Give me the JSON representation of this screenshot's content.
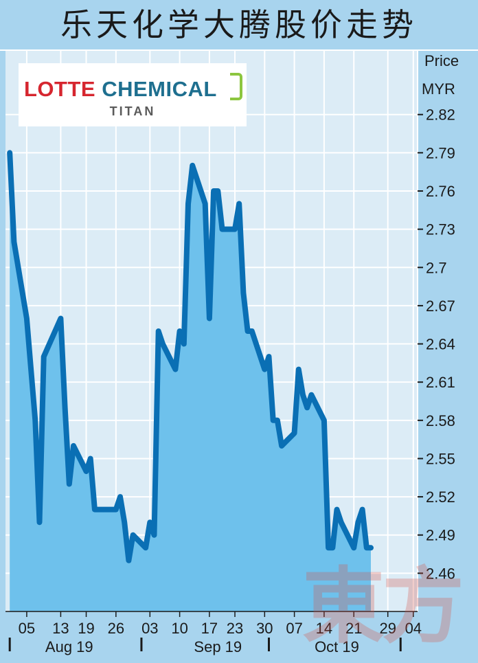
{
  "title": "乐天化学大腾股价走势",
  "logo": {
    "brand_red": "LOTTE",
    "brand_teal": "CHEMICAL",
    "sub": "TITAN"
  },
  "watermark": "東方",
  "colors": {
    "background": "#a8d4ee",
    "plot_bg": "#dcecf6",
    "line": "#0a6fb4",
    "fill": "#6ec1ec",
    "grid": "#ffffff"
  },
  "chart_data": {
    "type": "area",
    "ylabel": "Price",
    "yunit": "MYR",
    "ylim": [
      2.43,
      2.87
    ],
    "yticks": [
      2.46,
      2.49,
      2.52,
      2.55,
      2.58,
      2.61,
      2.64,
      2.67,
      2.7,
      2.73,
      2.76,
      2.79,
      2.82
    ],
    "ytick_labels": [
      "2.46",
      "2.49",
      "2.52",
      "2.55",
      "2.58",
      "2.61",
      "2.64",
      "2.67",
      "2.7",
      "2.73",
      "2.76",
      "2.79",
      "2.82"
    ],
    "xlim": [
      "2019-07-31",
      "2019-11-05"
    ],
    "xticks": [
      {
        "date": "2019-08-05",
        "label": "05"
      },
      {
        "date": "2019-08-13",
        "label": "13"
      },
      {
        "date": "2019-08-19",
        "label": "19"
      },
      {
        "date": "2019-08-26",
        "label": "26"
      },
      {
        "date": "2019-09-03",
        "label": "03"
      },
      {
        "date": "2019-09-10",
        "label": "10"
      },
      {
        "date": "2019-09-17",
        "label": "17"
      },
      {
        "date": "2019-09-23",
        "label": "23"
      },
      {
        "date": "2019-09-30",
        "label": "30"
      },
      {
        "date": "2019-10-07",
        "label": "07"
      },
      {
        "date": "2019-10-14",
        "label": "14"
      },
      {
        "date": "2019-10-21",
        "label": "21"
      },
      {
        "date": "2019-10-29",
        "label": "29"
      },
      {
        "date": "2019-11-04",
        "label": "04"
      }
    ],
    "month_labels": [
      {
        "date": "2019-08-15",
        "label": "Aug 19"
      },
      {
        "date": "2019-09-19",
        "label": "Sep 19"
      },
      {
        "date": "2019-10-17",
        "label": "Oct 19"
      }
    ],
    "month_separators": [
      "2019-08-01",
      "2019-09-01",
      "2019-10-01",
      "2019-11-01"
    ],
    "grid": true,
    "series": [
      {
        "points": [
          [
            "2019-08-01",
            2.79
          ],
          [
            "2019-08-02",
            2.72
          ],
          [
            "2019-08-05",
            2.66
          ],
          [
            "2019-08-06",
            2.62
          ],
          [
            "2019-08-07",
            2.58
          ],
          [
            "2019-08-08",
            2.5
          ],
          [
            "2019-08-09",
            2.63
          ],
          [
            "2019-08-13",
            2.66
          ],
          [
            "2019-08-14",
            2.59
          ],
          [
            "2019-08-15",
            2.53
          ],
          [
            "2019-08-16",
            2.56
          ],
          [
            "2019-08-19",
            2.54
          ],
          [
            "2019-08-20",
            2.55
          ],
          [
            "2019-08-21",
            2.51
          ],
          [
            "2019-08-22",
            2.51
          ],
          [
            "2019-08-23",
            2.51
          ],
          [
            "2019-08-26",
            2.51
          ],
          [
            "2019-08-27",
            2.52
          ],
          [
            "2019-08-28",
            2.5
          ],
          [
            "2019-08-29",
            2.47
          ],
          [
            "2019-08-30",
            2.49
          ],
          [
            "2019-09-02",
            2.48
          ],
          [
            "2019-09-03",
            2.5
          ],
          [
            "2019-09-04",
            2.49
          ],
          [
            "2019-09-05",
            2.65
          ],
          [
            "2019-09-06",
            2.64
          ],
          [
            "2019-09-09",
            2.62
          ],
          [
            "2019-09-10",
            2.65
          ],
          [
            "2019-09-11",
            2.64
          ],
          [
            "2019-09-12",
            2.75
          ],
          [
            "2019-09-13",
            2.78
          ],
          [
            "2019-09-16",
            2.75
          ],
          [
            "2019-09-17",
            2.66
          ],
          [
            "2019-09-18",
            2.76
          ],
          [
            "2019-09-19",
            2.76
          ],
          [
            "2019-09-20",
            2.73
          ],
          [
            "2019-09-23",
            2.73
          ],
          [
            "2019-09-24",
            2.75
          ],
          [
            "2019-09-25",
            2.68
          ],
          [
            "2019-09-26",
            2.65
          ],
          [
            "2019-09-27",
            2.65
          ],
          [
            "2019-09-30",
            2.62
          ],
          [
            "2019-10-01",
            2.63
          ],
          [
            "2019-10-02",
            2.58
          ],
          [
            "2019-10-03",
            2.58
          ],
          [
            "2019-10-04",
            2.56
          ],
          [
            "2019-10-07",
            2.57
          ],
          [
            "2019-10-08",
            2.62
          ],
          [
            "2019-10-09",
            2.6
          ],
          [
            "2019-10-10",
            2.59
          ],
          [
            "2019-10-11",
            2.6
          ],
          [
            "2019-10-14",
            2.58
          ],
          [
            "2019-10-15",
            2.48
          ],
          [
            "2019-10-16",
            2.48
          ],
          [
            "2019-10-17",
            2.51
          ],
          [
            "2019-10-18",
            2.5
          ],
          [
            "2019-10-21",
            2.48
          ],
          [
            "2019-10-22",
            2.5
          ],
          [
            "2019-10-23",
            2.51
          ],
          [
            "2019-10-24",
            2.48
          ],
          [
            "2019-10-25",
            2.48
          ]
        ]
      }
    ]
  }
}
